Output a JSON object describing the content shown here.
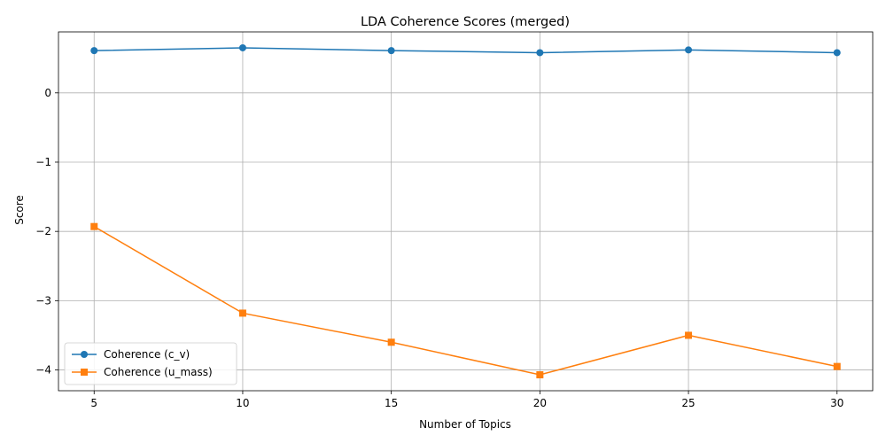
{
  "chart_data": {
    "type": "line",
    "title": "LDA Coherence Scores (merged)",
    "xlabel": "Number of Topics",
    "ylabel": "Score",
    "x": [
      5,
      10,
      15,
      20,
      25,
      30
    ],
    "xlim": [
      3.8,
      31.2
    ],
    "ylim": [
      -4.3,
      0.88
    ],
    "xticks": [
      5,
      10,
      15,
      20,
      25,
      30
    ],
    "yticks": [
      0,
      -1,
      -2,
      -3,
      -4
    ],
    "ytick_labels": [
      "0",
      "−1",
      "−2",
      "−3",
      "−4"
    ],
    "grid": true,
    "legend_position": "lower-left",
    "series": [
      {
        "name": "Coherence (c_v)",
        "values": [
          0.61,
          0.65,
          0.61,
          0.58,
          0.62,
          0.58
        ],
        "color": "#1f77b4",
        "marker": "circle"
      },
      {
        "name": "Coherence (u_mass)",
        "values": [
          -1.93,
          -3.18,
          -3.6,
          -4.07,
          -3.5,
          -3.95
        ],
        "color": "#ff7f0e",
        "marker": "square"
      }
    ]
  }
}
